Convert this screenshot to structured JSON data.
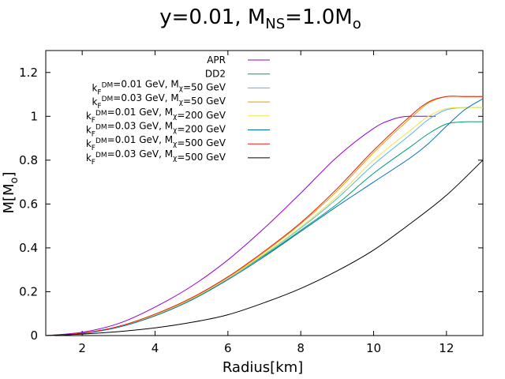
{
  "chart_data": {
    "type": "line",
    "title": {
      "main": "y=0.01, M",
      "main_sub": "NS",
      "rest": "=1.0M",
      "rest_sub": "o"
    },
    "xlabel": "Radius[km]",
    "ylabel": {
      "main": "M[M",
      "sub": "o",
      "close": "]"
    },
    "xlim": [
      1,
      13
    ],
    "ylim": [
      0,
      1.3
    ],
    "xticks": [
      2,
      4,
      6,
      8,
      10,
      12
    ],
    "yticks": [
      0,
      0.2,
      0.4,
      0.6,
      0.8,
      1,
      1.2
    ],
    "grid": false,
    "legend_position": "top-left",
    "series": [
      {
        "name": "APR",
        "legend": {
          "segments": [
            {
              "t": "APR",
              "s": "n"
            }
          ]
        },
        "color": "#9400d3",
        "x": [
          1,
          2,
          3,
          4,
          5,
          6,
          7,
          8,
          9,
          10,
          10.5,
          10.8,
          11,
          11.5,
          11.7
        ],
        "y": [
          0,
          0.015,
          0.055,
          0.13,
          0.225,
          0.345,
          0.49,
          0.65,
          0.815,
          0.945,
          0.985,
          0.998,
          1.0,
          1.0,
          1.0
        ]
      },
      {
        "name": "DD2",
        "legend": {
          "segments": [
            {
              "t": "DD2",
              "s": "n"
            }
          ]
        },
        "color": "#009e73",
        "x": [
          1,
          2,
          3,
          4,
          5,
          6,
          7,
          8,
          9,
          10,
          11,
          11.5,
          12,
          12.5,
          13
        ],
        "y": [
          0,
          0.01,
          0.04,
          0.095,
          0.165,
          0.26,
          0.365,
          0.48,
          0.6,
          0.74,
          0.86,
          0.92,
          0.965,
          0.975,
          0.975
        ]
      },
      {
        "name": "kF DM=0.01 GeV, Mchi=50 GeV",
        "legend": {
          "segments": [
            {
              "t": "k",
              "s": "n"
            },
            {
              "t": "F",
              "s": "sub"
            },
            {
              "t": "DM",
              "s": "sup"
            },
            {
              "t": "=0.01 GeV, M",
              "s": "n"
            },
            {
              "t": "χ",
              "s": "sub"
            },
            {
              "t": "=50 GeV",
              "s": "n"
            }
          ]
        },
        "color": "#56b4e9",
        "x": [
          1,
          2,
          3,
          4,
          5,
          6,
          7,
          8,
          9,
          10,
          11,
          11.5,
          12,
          12.5,
          13
        ],
        "y": [
          0,
          0.01,
          0.04,
          0.093,
          0.165,
          0.26,
          0.37,
          0.49,
          0.625,
          0.78,
          0.915,
          0.985,
          1.03,
          1.04,
          1.04
        ]
      },
      {
        "name": "kF DM=0.03 GeV, Mchi=50 GeV",
        "legend": {
          "segments": [
            {
              "t": "k",
              "s": "n"
            },
            {
              "t": "F",
              "s": "sub"
            },
            {
              "t": "DM",
              "s": "sup"
            },
            {
              "t": "=0.03 GeV, M",
              "s": "n"
            },
            {
              "t": "χ",
              "s": "sub"
            },
            {
              "t": "=50 GeV",
              "s": "n"
            }
          ]
        },
        "color": "#e69f00",
        "x": [
          1,
          2,
          3,
          4,
          5,
          6,
          7,
          8,
          9,
          10,
          11,
          11.5,
          12,
          12.5,
          13
        ],
        "y": [
          0,
          0.01,
          0.04,
          0.095,
          0.17,
          0.265,
          0.38,
          0.51,
          0.66,
          0.835,
          0.99,
          1.06,
          1.09,
          1.09,
          1.09
        ]
      },
      {
        "name": "kF DM=0.01 GeV, Mchi=200 GeV",
        "legend": {
          "segments": [
            {
              "t": "k",
              "s": "n"
            },
            {
              "t": "F",
              "s": "sub"
            },
            {
              "t": "DM",
              "s": "sup"
            },
            {
              "t": "=0.01 GeV, M",
              "s": "n"
            },
            {
              "t": "χ",
              "s": "sub"
            },
            {
              "t": "=200 GeV",
              "s": "n"
            }
          ]
        },
        "color": "#f0e442",
        "x": [
          1,
          2,
          3,
          4,
          5,
          6,
          7,
          8,
          9,
          10,
          11,
          11.5,
          12,
          12.5,
          13
        ],
        "y": [
          0,
          0.01,
          0.04,
          0.094,
          0.167,
          0.262,
          0.372,
          0.495,
          0.635,
          0.8,
          0.935,
          1.0,
          1.035,
          1.04,
          1.04
        ]
      },
      {
        "name": "kF DM=0.03 GeV, Mchi=200 GeV",
        "legend": {
          "segments": [
            {
              "t": "k",
              "s": "n"
            },
            {
              "t": "F",
              "s": "sub"
            },
            {
              "t": "DM",
              "s": "sup"
            },
            {
              "t": "=0.03 GeV, M",
              "s": "n"
            },
            {
              "t": "χ",
              "s": "sub"
            },
            {
              "t": "=200 GeV",
              "s": "n"
            }
          ]
        },
        "color": "#0072b2",
        "x": [
          1,
          2,
          3,
          4,
          5,
          6,
          7,
          8,
          9,
          10,
          11,
          11.5,
          12,
          12.5,
          13
        ],
        "y": [
          0,
          0.01,
          0.038,
          0.09,
          0.162,
          0.255,
          0.36,
          0.475,
          0.59,
          0.7,
          0.81,
          0.875,
          0.955,
          1.03,
          1.08
        ]
      },
      {
        "name": "kF DM=0.01 GeV, Mchi=500 GeV",
        "legend": {
          "segments": [
            {
              "t": "k",
              "s": "n"
            },
            {
              "t": "F",
              "s": "sub"
            },
            {
              "t": "DM",
              "s": "sup"
            },
            {
              "t": "=0.01 GeV, M",
              "s": "n"
            },
            {
              "t": "χ",
              "s": "sub"
            },
            {
              "t": "=500 GeV",
              "s": "n"
            }
          ]
        },
        "color": "#e51e10",
        "x": [
          1,
          2,
          3,
          4,
          5,
          6,
          7,
          8,
          9,
          10,
          11,
          11.5,
          12,
          12.5,
          13
        ],
        "y": [
          0,
          0.011,
          0.042,
          0.098,
          0.172,
          0.268,
          0.385,
          0.515,
          0.67,
          0.845,
          1.0,
          1.065,
          1.09,
          1.09,
          1.09
        ]
      },
      {
        "name": "kF DM=0.03 GeV, Mchi=500 GeV",
        "legend": {
          "segments": [
            {
              "t": "k",
              "s": "n"
            },
            {
              "t": "F",
              "s": "sub"
            },
            {
              "t": "DM",
              "s": "sup"
            },
            {
              "t": "=0.03 GeV, M",
              "s": "n"
            },
            {
              "t": "χ",
              "s": "sub"
            },
            {
              "t": "=500 GeV",
              "s": "n"
            }
          ]
        },
        "color": "#000000",
        "x": [
          1,
          2,
          3,
          4,
          5,
          6,
          7,
          8,
          9,
          10,
          11,
          12,
          13
        ],
        "y": [
          0,
          0.007,
          0.018,
          0.035,
          0.06,
          0.095,
          0.15,
          0.215,
          0.295,
          0.39,
          0.51,
          0.64,
          0.8
        ]
      }
    ]
  }
}
